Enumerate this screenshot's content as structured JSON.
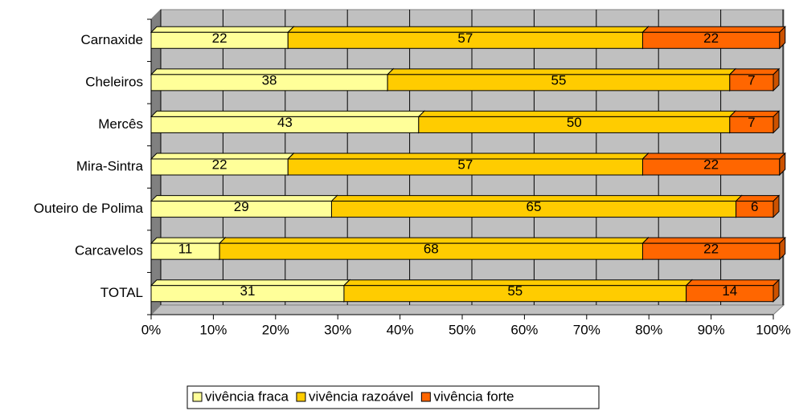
{
  "chart_data": {
    "type": "bar",
    "orientation": "horizontal",
    "stacked": true,
    "categories": [
      "Carnaxide",
      "Cheleiros",
      "Mercês",
      "Mira-Sintra",
      "Outeiro de Polima",
      "Carcavelos",
      "TOTAL"
    ],
    "series": [
      {
        "name": "vivência fraca",
        "color": "#ffff99",
        "values": [
          22,
          38,
          43,
          22,
          29,
          11,
          31
        ]
      },
      {
        "name": "vivência razoável",
        "color": "#ffcc00",
        "values": [
          57,
          55,
          50,
          57,
          65,
          68,
          55
        ]
      },
      {
        "name": "vivência forte",
        "color": "#ff6600",
        "values": [
          22,
          7,
          7,
          22,
          6,
          22,
          14
        ]
      }
    ],
    "xlim": [
      0,
      100
    ],
    "xticks": [
      {
        "value": 0,
        "label": "0%"
      },
      {
        "value": 10,
        "label": "10%"
      },
      {
        "value": 20,
        "label": "20%"
      },
      {
        "value": 30,
        "label": "30%"
      },
      {
        "value": 40,
        "label": "40%"
      },
      {
        "value": 50,
        "label": "50%"
      },
      {
        "value": 60,
        "label": "60%"
      },
      {
        "value": 70,
        "label": "70%"
      },
      {
        "value": 80,
        "label": "80%"
      },
      {
        "value": 90,
        "label": "90%"
      },
      {
        "value": 100,
        "label": "100%"
      }
    ],
    "grid": true,
    "legend": "bottom"
  }
}
